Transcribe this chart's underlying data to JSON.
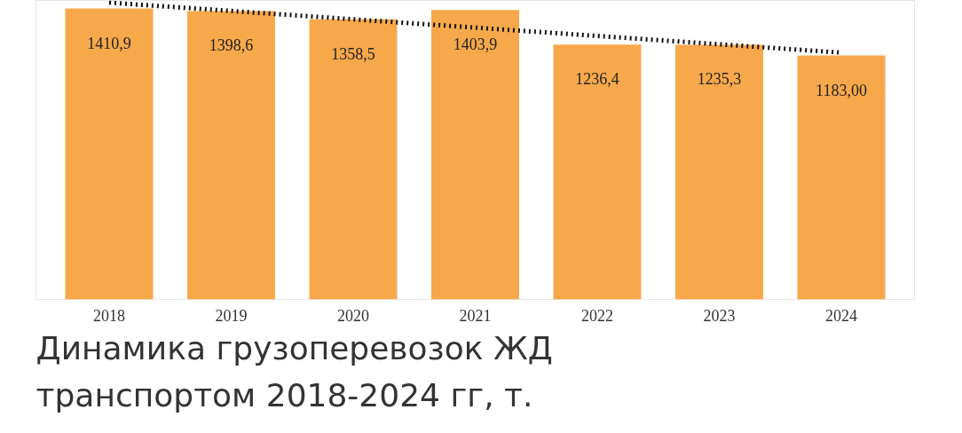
{
  "chart_data": {
    "type": "bar",
    "title": "Динамика грузоперевозок ЖД\nтранспортом 2018-2024 гг, т.",
    "categories": [
      "2018",
      "2019",
      "2020",
      "2021",
      "2022",
      "2023",
      "2024"
    ],
    "series": [
      {
        "color": "#f7a84a",
        "values": [
          1410.9,
          1398.6,
          1358.5,
          1403.9,
          1236.4,
          1235.3,
          1183
        ],
        "value_labels": [
          "1410,9",
          "1398,6",
          "1358,5",
          "1403,9",
          "1236,4",
          "1235,3",
          "1183,00"
        ]
      },
      {
        "type": "line",
        "color": "#111111",
        "line_style": "dotted",
        "values": [
          1439.4,
          1399,
          1358.6,
          1318.2,
          1277.8,
          1237.4,
          1197
        ]
      }
    ],
    "ylim": [
      0,
      1450
    ],
    "tick_labels": "x",
    "grid": false
  }
}
